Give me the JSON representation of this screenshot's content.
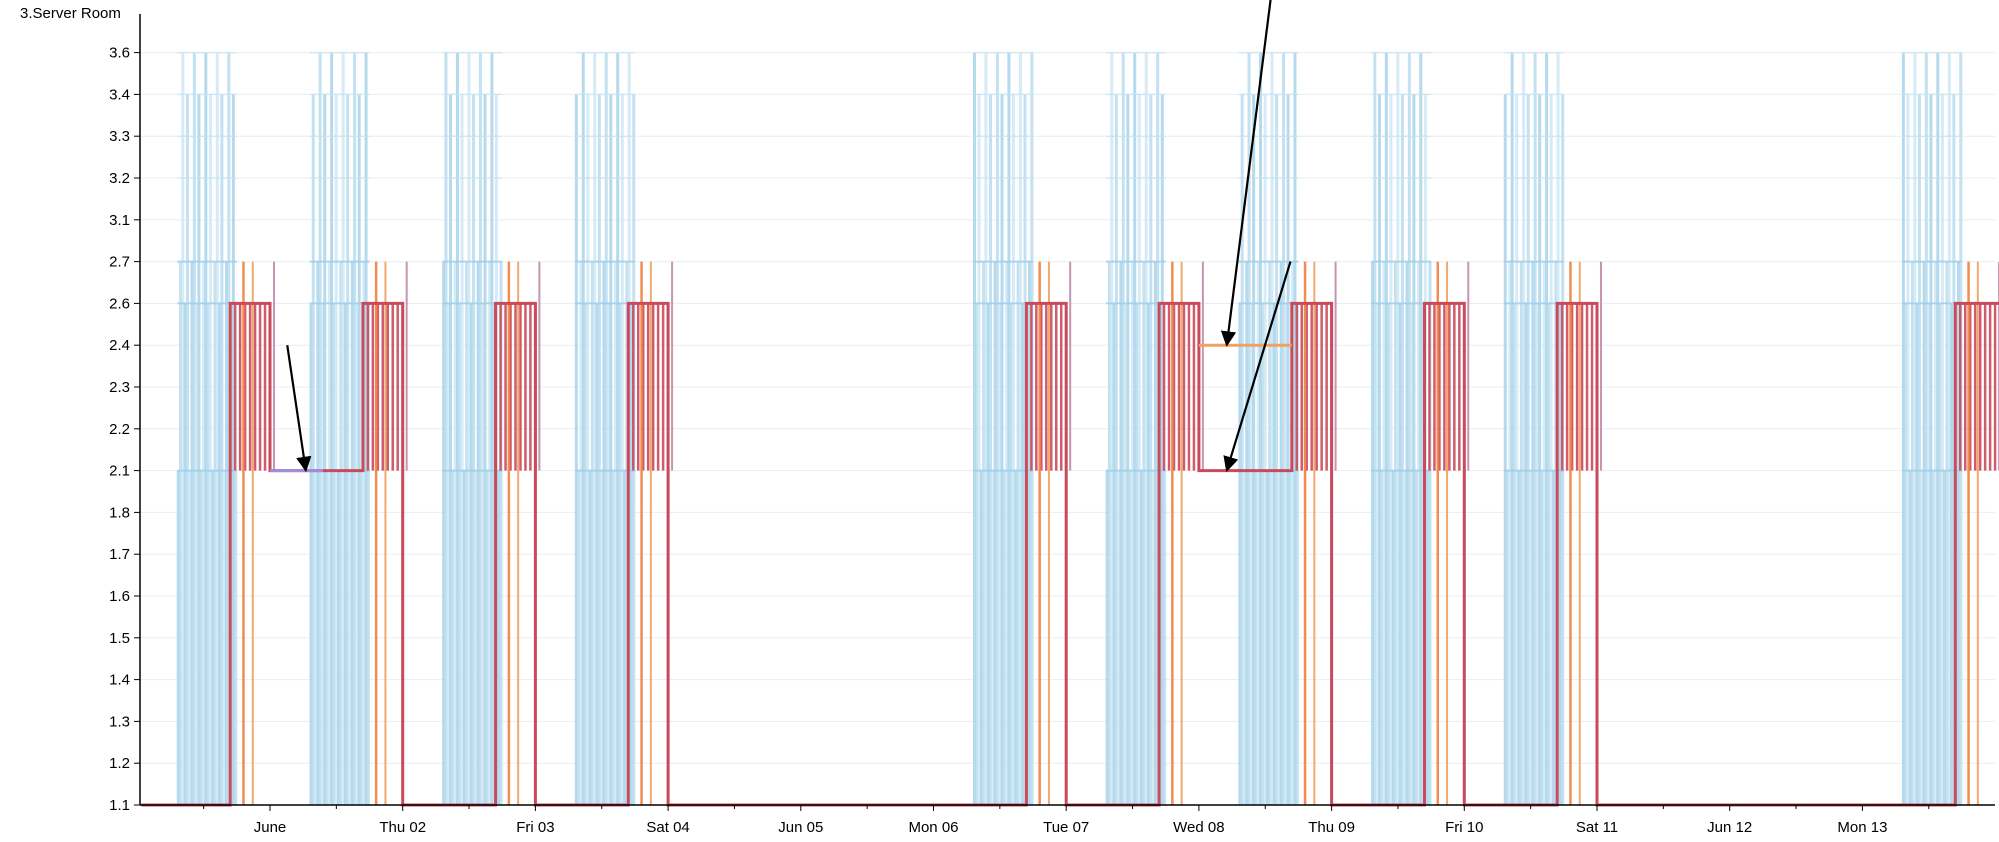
{
  "chart_data": {
    "type": "line",
    "title": "",
    "ylabel": "3.Server Room",
    "xlabel": "",
    "y_ticks": [
      "1.1",
      "1.2",
      "1.3",
      "1.4",
      "1.5",
      "1.6",
      "1.7",
      "1.8",
      "2.1",
      "2.2",
      "2.3",
      "2.4",
      "2.6",
      "2.7",
      "3.1",
      "3.2",
      "3.3",
      "3.4",
      "3.6"
    ],
    "x_tick_labels": [
      {
        "day": 1,
        "label": "June"
      },
      {
        "day": 2,
        "label": "Thu 02"
      },
      {
        "day": 3,
        "label": "Fri 03"
      },
      {
        "day": 4,
        "label": "Sat 04"
      },
      {
        "day": 5,
        "label": "Jun 05"
      },
      {
        "day": 6,
        "label": "Mon 06"
      },
      {
        "day": 7,
        "label": "Tue 07"
      },
      {
        "day": 8,
        "label": "Wed 08"
      },
      {
        "day": 9,
        "label": "Thu 09"
      },
      {
        "day": 10,
        "label": "Fri 10"
      },
      {
        "day": 11,
        "label": "Sat 11"
      },
      {
        "day": 12,
        "label": "Jun 12"
      },
      {
        "day": 13,
        "label": "Mon 13"
      }
    ],
    "x_range": [
      0.03,
      14.2
    ],
    "grid": true,
    "legend": "none",
    "blue_activity_windows": [
      [
        0.3,
        0.75
      ],
      [
        1.3,
        1.75
      ],
      [
        2.3,
        2.75
      ],
      [
        3.3,
        3.75
      ],
      [
        6.3,
        6.75
      ],
      [
        7.3,
        7.75
      ],
      [
        8.3,
        8.75
      ],
      [
        9.3,
        9.75
      ],
      [
        10.3,
        10.75
      ],
      [
        13.3,
        13.75
      ]
    ],
    "blue_levels": [
      "2.1",
      "2.6",
      "2.7",
      "3.4",
      "3.6"
    ],
    "series": [
      {
        "color": "#c94a5a",
        "points": [
          {
            "x": 0.03,
            "y": "1.1"
          },
          {
            "x": 0.7,
            "y": "1.1"
          },
          {
            "x": 0.7,
            "y": "2.6"
          },
          {
            "x": 1.0,
            "y": "2.6"
          },
          {
            "x": 1.0,
            "y": "2.1"
          },
          {
            "x": 1.4,
            "y": "2.1"
          },
          {
            "x": 1.7,
            "y": "2.1"
          },
          {
            "x": 1.7,
            "y": "2.6"
          },
          {
            "x": 2.0,
            "y": "2.6"
          },
          {
            "x": 2.0,
            "y": "1.1"
          },
          {
            "x": 2.7,
            "y": "1.1"
          },
          {
            "x": 2.7,
            "y": "2.6"
          },
          {
            "x": 3.0,
            "y": "2.6"
          },
          {
            "x": 3.0,
            "y": "1.1"
          },
          {
            "x": 3.7,
            "y": "1.1"
          },
          {
            "x": 3.7,
            "y": "2.6"
          },
          {
            "x": 4.0,
            "y": "2.6"
          },
          {
            "x": 4.0,
            "y": "1.1"
          },
          {
            "x": 6.7,
            "y": "1.1"
          },
          {
            "x": 6.7,
            "y": "2.6"
          },
          {
            "x": 7.0,
            "y": "2.6"
          },
          {
            "x": 7.0,
            "y": "1.1"
          },
          {
            "x": 7.7,
            "y": "1.1"
          },
          {
            "x": 7.7,
            "y": "2.6"
          },
          {
            "x": 8.0,
            "y": "2.6"
          },
          {
            "x": 8.0,
            "y": "2.1"
          },
          {
            "x": 8.7,
            "y": "2.1"
          },
          {
            "x": 8.7,
            "y": "2.6"
          },
          {
            "x": 9.0,
            "y": "2.6"
          },
          {
            "x": 9.0,
            "y": "1.1"
          },
          {
            "x": 9.7,
            "y": "1.1"
          },
          {
            "x": 9.7,
            "y": "2.6"
          },
          {
            "x": 10.0,
            "y": "2.6"
          },
          {
            "x": 10.0,
            "y": "1.1"
          },
          {
            "x": 10.7,
            "y": "1.1"
          },
          {
            "x": 10.7,
            "y": "2.6"
          },
          {
            "x": 11.0,
            "y": "2.6"
          },
          {
            "x": 11.0,
            "y": "1.1"
          },
          {
            "x": 13.7,
            "y": "1.1"
          },
          {
            "x": 13.7,
            "y": "2.6"
          },
          {
            "x": 14.2,
            "y": "2.6"
          }
        ]
      },
      {
        "color": "#f0a060",
        "points": [
          {
            "x": 8.0,
            "y": "2.4"
          },
          {
            "x": 8.7,
            "y": "2.4"
          }
        ]
      },
      {
        "color": "#a08cd8",
        "points": [
          {
            "x": 1.0,
            "y": "2.1"
          },
          {
            "x": 1.4,
            "y": "2.1"
          }
        ]
      }
    ],
    "annotations": [
      {
        "type": "arrow",
        "from": {
          "x": 1.13,
          "y": "2.4"
        },
        "to": {
          "x": 1.27,
          "y": "2.1"
        }
      },
      {
        "type": "arrow",
        "from": {
          "x": 8.54,
          "y": "2.95"
        },
        "to": {
          "x": 8.21,
          "y": "2.4"
        }
      },
      {
        "type": "arrow",
        "from": {
          "x": 8.69,
          "y": "2.7"
        },
        "to": {
          "x": 8.21,
          "y": "2.1"
        }
      }
    ]
  }
}
